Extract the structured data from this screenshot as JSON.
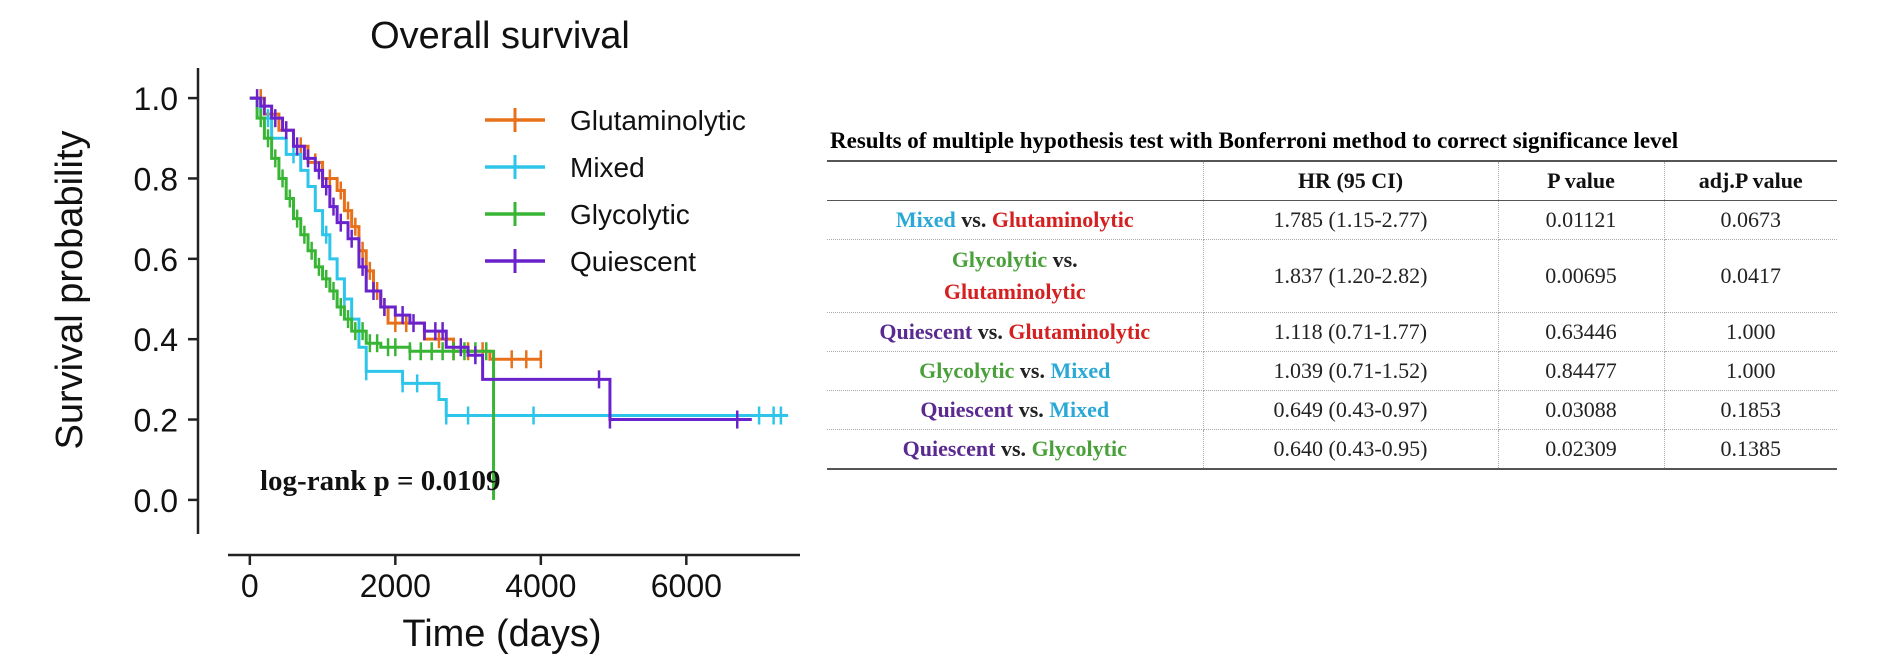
{
  "colors": {
    "Glutaminolytic": "#e8701a",
    "Mixed": "#2ec5ea",
    "Glycolytic": "#38b534",
    "Quiescent": "#6a22cc",
    "table_Glutaminolytic": "#d42020",
    "table_Mixed": "#2aa8d6",
    "table_Glycolytic": "#4aa03a",
    "table_Quiescent": "#5a2a90"
  },
  "chart_data": {
    "type": "line",
    "subtype": "kaplan-meier step",
    "title": "Overall survival",
    "xlabel": "Time (days)",
    "ylabel": "Survival probability",
    "xlim": [
      -300,
      7700
    ],
    "ylim": [
      -0.05,
      1.05
    ],
    "x_ticks": [
      0,
      2000,
      4000,
      6000
    ],
    "x_tick_labels": [
      "0",
      "2000",
      "4000",
      "6000"
    ],
    "y_ticks": [
      0.0,
      0.2,
      0.4,
      0.6,
      0.8,
      1.0
    ],
    "y_tick_labels": [
      "0.0",
      "0.2",
      "0.4",
      "0.6",
      "0.8",
      "1.0"
    ],
    "legend_position": "top-right",
    "annotation": "log-rank p = 0.0109",
    "series": [
      {
        "name": "Glutaminolytic",
        "steps": [
          [
            0,
            1.0
          ],
          [
            200,
            0.96
          ],
          [
            400,
            0.92
          ],
          [
            600,
            0.88
          ],
          [
            800,
            0.84
          ],
          [
            1000,
            0.8
          ],
          [
            1200,
            0.77
          ],
          [
            1300,
            0.72
          ],
          [
            1400,
            0.68
          ],
          [
            1500,
            0.62
          ],
          [
            1600,
            0.57
          ],
          [
            1700,
            0.52
          ],
          [
            1800,
            0.48
          ],
          [
            1900,
            0.44
          ],
          [
            2300,
            0.44
          ],
          [
            2400,
            0.4
          ],
          [
            2800,
            0.37
          ],
          [
            3300,
            0.35
          ],
          [
            4000,
            0.35
          ]
        ],
        "censor_x": [
          150,
          300,
          500,
          700,
          900,
          1100,
          1250,
          1350,
          1450,
          1550,
          1650,
          1750,
          1850,
          2000,
          2150,
          2600,
          2800,
          3000,
          3200,
          3600,
          3800,
          4000
        ]
      },
      {
        "name": "Mixed",
        "steps": [
          [
            0,
            1.0
          ],
          [
            150,
            0.95
          ],
          [
            300,
            0.9
          ],
          [
            500,
            0.86
          ],
          [
            700,
            0.82
          ],
          [
            800,
            0.78
          ],
          [
            900,
            0.72
          ],
          [
            1000,
            0.66
          ],
          [
            1100,
            0.6
          ],
          [
            1200,
            0.55
          ],
          [
            1300,
            0.5
          ],
          [
            1400,
            0.45
          ],
          [
            1500,
            0.38
          ],
          [
            1600,
            0.32
          ],
          [
            1800,
            0.32
          ],
          [
            2100,
            0.29
          ],
          [
            2600,
            0.25
          ],
          [
            2700,
            0.21
          ],
          [
            7400,
            0.21
          ]
        ],
        "censor_x": [
          250,
          600,
          1050,
          1300,
          1600,
          2100,
          2300,
          2700,
          3000,
          3900,
          7000,
          7200,
          7300
        ]
      },
      {
        "name": "Glycolytic",
        "steps": [
          [
            0,
            1.0
          ],
          [
            100,
            0.95
          ],
          [
            200,
            0.9
          ],
          [
            300,
            0.85
          ],
          [
            400,
            0.8
          ],
          [
            500,
            0.75
          ],
          [
            600,
            0.7
          ],
          [
            700,
            0.66
          ],
          [
            800,
            0.62
          ],
          [
            900,
            0.58
          ],
          [
            1000,
            0.55
          ],
          [
            1100,
            0.52
          ],
          [
            1200,
            0.48
          ],
          [
            1300,
            0.45
          ],
          [
            1400,
            0.42
          ],
          [
            1600,
            0.39
          ],
          [
            1800,
            0.38
          ],
          [
            2100,
            0.38
          ],
          [
            2200,
            0.37
          ],
          [
            3350,
            0.37
          ],
          [
            3350,
            0.0
          ]
        ],
        "censor_x": [
          150,
          250,
          350,
          450,
          550,
          650,
          750,
          850,
          950,
          1050,
          1150,
          1250,
          1350,
          1450,
          1550,
          1650,
          1750,
          1900,
          2000,
          2200,
          2350,
          2500,
          2650,
          2800,
          2950,
          3100,
          3250
        ]
      },
      {
        "name": "Quiescent",
        "steps": [
          [
            0,
            1.0
          ],
          [
            150,
            0.98
          ],
          [
            300,
            0.95
          ],
          [
            450,
            0.92
          ],
          [
            600,
            0.88
          ],
          [
            750,
            0.85
          ],
          [
            900,
            0.82
          ],
          [
            1000,
            0.78
          ],
          [
            1100,
            0.73
          ],
          [
            1200,
            0.69
          ],
          [
            1350,
            0.65
          ],
          [
            1500,
            0.58
          ],
          [
            1600,
            0.52
          ],
          [
            1800,
            0.48
          ],
          [
            2000,
            0.46
          ],
          [
            2200,
            0.44
          ],
          [
            2400,
            0.42
          ],
          [
            2700,
            0.38
          ],
          [
            3000,
            0.36
          ],
          [
            3200,
            0.3
          ],
          [
            4950,
            0.3
          ],
          [
            4950,
            0.2
          ],
          [
            6900,
            0.2
          ]
        ],
        "censor_x": [
          100,
          200,
          350,
          500,
          650,
          800,
          950,
          1050,
          1150,
          1250,
          1400,
          1550,
          1700,
          1850,
          2100,
          2250,
          2400,
          2550,
          2650,
          2900,
          3100,
          4800,
          4950,
          6700
        ]
      }
    ]
  },
  "table": {
    "caption": "Results of multiple hypothesis test with Bonferroni method to correct significance level",
    "headers": {
      "comparison": "",
      "hr": "HR (95 CI)",
      "p": "P value",
      "adjp": "adj.P value"
    },
    "vs": "vs.",
    "rows": [
      {
        "a": "Mixed",
        "b": "Glutaminolytic",
        "hr": "1.785 (1.15-2.77)",
        "p": "0.01121",
        "adjp": "0.0673"
      },
      {
        "a": "Glycolytic",
        "b": "Glutaminolytic",
        "hr": "1.837 (1.20-2.82)",
        "p": "0.00695",
        "adjp": "0.0417"
      },
      {
        "a": "Quiescent",
        "b": "Glutaminolytic",
        "hr": "1.118 (0.71-1.77)",
        "p": "0.63446",
        "adjp": "1.000"
      },
      {
        "a": "Glycolytic",
        "b": "Mixed",
        "hr": "1.039 (0.71-1.52)",
        "p": "0.84477",
        "adjp": "1.000"
      },
      {
        "a": "Quiescent",
        "b": "Mixed",
        "hr": "0.649 (0.43-0.97)",
        "p": "0.03088",
        "adjp": "0.1853"
      },
      {
        "a": "Quiescent",
        "b": "Glycolytic",
        "hr": "0.640 (0.43-0.95)",
        "p": "0.02309",
        "adjp": "0.1385"
      }
    ]
  }
}
